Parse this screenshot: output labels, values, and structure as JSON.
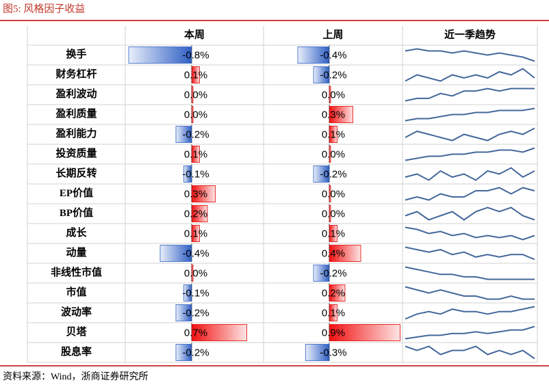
{
  "header": {
    "title": "图5:   风格因子收益"
  },
  "table": {
    "columns": [
      "本周",
      "上周",
      "近一季趋势"
    ],
    "rows": [
      {
        "name": "换手",
        "this_week": {
          "value": -0.8,
          "label": "-0.8%"
        },
        "last_week": {
          "value": -0.4,
          "label": "-0.4%"
        },
        "trend": [
          7,
          8,
          7,
          7,
          6,
          7,
          6,
          5,
          6,
          5,
          4,
          2
        ]
      },
      {
        "name": "财务杠杆",
        "this_week": {
          "value": 0.1,
          "label": "0.1%"
        },
        "last_week": {
          "value": -0.2,
          "label": "-0.2%"
        },
        "trend": [
          3,
          5,
          4,
          3,
          5,
          4,
          5,
          4,
          6,
          5,
          7,
          4
        ]
      },
      {
        "name": "盈利波动",
        "this_week": {
          "value": 0,
          "label": "0.0%"
        },
        "last_week": {
          "value": 0,
          "label": "0.0%"
        },
        "trend": [
          2,
          3,
          3,
          5,
          4,
          6,
          6,
          7,
          6,
          7,
          7,
          7
        ]
      },
      {
        "name": "盈利质量",
        "this_week": {
          "value": 0,
          "label": "0.0%"
        },
        "last_week": {
          "value": 0.3,
          "label": "0.3%"
        },
        "trend": [
          2,
          3,
          3,
          4,
          5,
          5,
          6,
          6,
          7,
          7,
          7,
          8
        ]
      },
      {
        "name": "盈利能力",
        "this_week": {
          "value": -0.2,
          "label": "-0.2%"
        },
        "last_week": {
          "value": 0.1,
          "label": "0.1%"
        },
        "trend": [
          4,
          6,
          5,
          4,
          3,
          5,
          4,
          3,
          5,
          6,
          5,
          7
        ]
      },
      {
        "name": "投资质量",
        "this_week": {
          "value": 0.1,
          "label": "0.1%"
        },
        "last_week": {
          "value": 0,
          "label": "0.0%"
        },
        "trend": [
          2,
          3,
          4,
          4,
          5,
          5,
          6,
          6,
          7,
          7,
          6,
          8
        ]
      },
      {
        "name": "长期反转",
        "this_week": {
          "value": -0.1,
          "label": "-0.1%"
        },
        "last_week": {
          "value": -0.2,
          "label": "-0.2%"
        },
        "trend": [
          4,
          5,
          3,
          6,
          4,
          5,
          3,
          6,
          5,
          7,
          4,
          6
        ]
      },
      {
        "name": "EP价值",
        "this_week": {
          "value": 0.3,
          "label": "0.3%"
        },
        "last_week": {
          "value": 0,
          "label": "0.0%"
        },
        "trend": [
          3,
          4,
          3,
          5,
          4,
          4,
          6,
          6,
          7,
          5,
          7,
          6
        ]
      },
      {
        "name": "BP价值",
        "this_week": {
          "value": 0.2,
          "label": "0.2%"
        },
        "last_week": {
          "value": 0,
          "label": "0.0%"
        },
        "trend": [
          5,
          6,
          4,
          5,
          6,
          4,
          6,
          7,
          6,
          7,
          5,
          4
        ]
      },
      {
        "name": "成长",
        "this_week": {
          "value": 0.1,
          "label": "0.1%"
        },
        "last_week": {
          "value": 0.1,
          "label": "0.1%"
        },
        "trend": [
          8,
          7,
          5,
          6,
          4,
          5,
          3,
          4,
          3,
          4,
          2,
          4
        ]
      },
      {
        "name": "动量",
        "this_week": {
          "value": -0.4,
          "label": "-0.4%"
        },
        "last_week": {
          "value": 0.4,
          "label": "0.4%"
        },
        "trend": [
          7,
          6,
          5,
          6,
          4,
          5,
          3,
          4,
          3,
          4,
          4,
          2
        ]
      },
      {
        "name": "非线性市值",
        "this_week": {
          "value": 0,
          "label": "0.0%"
        },
        "last_week": {
          "value": -0.2,
          "label": "-0.2%"
        },
        "trend": [
          8,
          7,
          6,
          5,
          5,
          4,
          4,
          3,
          3,
          3,
          3,
          3
        ]
      },
      {
        "name": "市值",
        "this_week": {
          "value": -0.1,
          "label": "-0.1%"
        },
        "last_week": {
          "value": 0.2,
          "label": "0.2%"
        },
        "trend": [
          7,
          6,
          5,
          6,
          5,
          4,
          4,
          3,
          3,
          4,
          3,
          3
        ]
      },
      {
        "name": "波动率",
        "this_week": {
          "value": -0.2,
          "label": "-0.2%"
        },
        "last_week": {
          "value": 0.1,
          "label": "0.1%"
        },
        "trend": [
          2,
          4,
          5,
          4,
          6,
          5,
          5,
          4,
          5,
          5,
          6,
          7
        ]
      },
      {
        "name": "贝塔",
        "this_week": {
          "value": 0.7,
          "label": "0.7%"
        },
        "last_week": {
          "value": 0.9,
          "label": "0.9%"
        },
        "trend": [
          2,
          3,
          4,
          4,
          5,
          5,
          6,
          5,
          6,
          7,
          7,
          9
        ]
      },
      {
        "name": "股息率",
        "this_week": {
          "value": -0.2,
          "label": "-0.2%"
        },
        "last_week": {
          "value": -0.3,
          "label": "-0.3%"
        },
        "trend": [
          6,
          5,
          6,
          4,
          5,
          5,
          6,
          4,
          5,
          4,
          5,
          3
        ]
      }
    ]
  },
  "source": "资料来源：Wind，浙商证券研究所"
}
